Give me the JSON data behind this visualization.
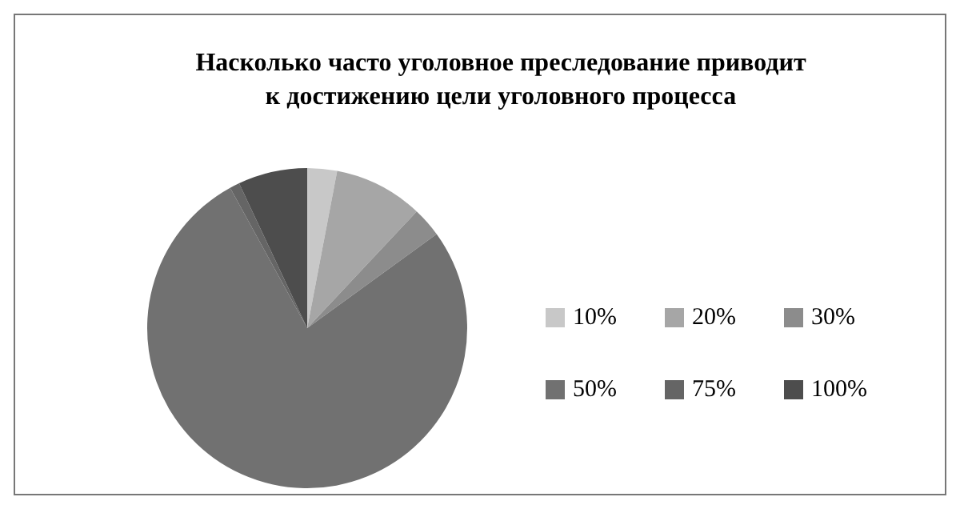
{
  "chart_data": {
    "type": "pie",
    "title": "Насколько часто уголовное преследование приводит\nк достижению цели уголовного процесса",
    "categories": [
      "10%",
      "20%",
      "30%",
      "50%",
      "75%",
      "100%"
    ],
    "values": [
      3,
      9,
      3,
      77,
      1,
      7
    ],
    "colors": [
      "#c8c8c8",
      "#a6a6a6",
      "#8c8c8c",
      "#717171",
      "#656565",
      "#4d4d4d"
    ],
    "legend": "right"
  }
}
